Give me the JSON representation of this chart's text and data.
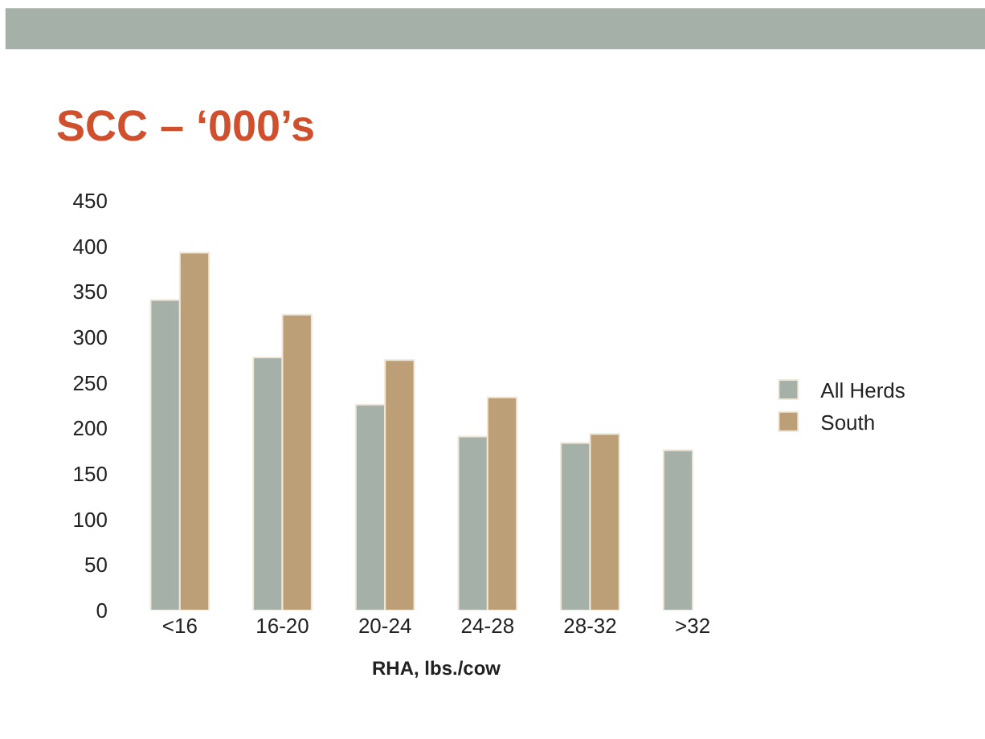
{
  "chart_data": {
    "type": "bar",
    "title": "SCC – ‘000’s",
    "xlabel": "RHA, lbs./cow",
    "categories": [
      "<16",
      "16-20",
      "20-24",
      "24-28",
      "28-32",
      ">32"
    ],
    "series": [
      {
        "name": "All Herds",
        "color": "#a5b0a9",
        "values": [
          341,
          278,
          226,
          191,
          184,
          176
        ]
      },
      {
        "name": "South",
        "color": "#bd9f77",
        "values": [
          393,
          325,
          275,
          234,
          194,
          null
        ]
      }
    ],
    "ylim": [
      0,
      450
    ],
    "yticks": [
      0,
      50,
      100,
      150,
      200,
      250,
      300,
      350,
      400,
      450
    ],
    "legend": "right"
  }
}
